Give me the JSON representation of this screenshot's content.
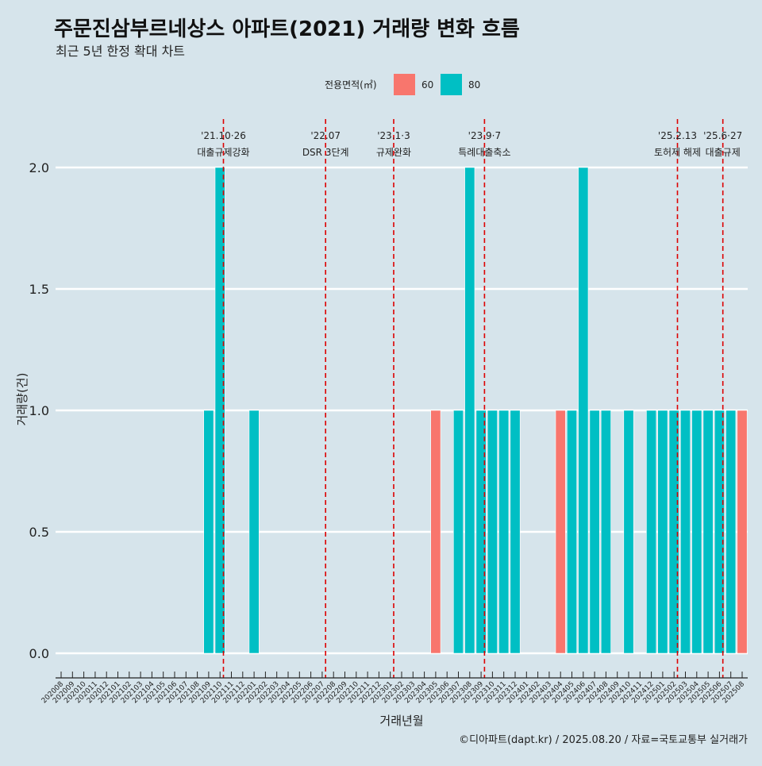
{
  "title": "주문진삼부르네상스 아파트(2021) 거래량 변화 흐름",
  "subtitle": "최근 5년 한정 확대 차트",
  "caption": "©디아파트(dapt.kr) / 2025.08.20 / 자료=국토교통부 실거래가",
  "colors": {
    "background": "#d6e4eb",
    "series_60": "#f8766d",
    "series_80": "#00bfc4",
    "event_line": "#dd0000",
    "grid": "#ffffff"
  },
  "chart_data": {
    "type": "bar",
    "xlabel": "거래년월",
    "ylabel": "거래량(건)",
    "ylim": [
      0,
      2
    ],
    "yticks": [
      0.0,
      0.5,
      1.0,
      1.5,
      2.0
    ],
    "ytick_labels": [
      "0.0",
      "0.5",
      "1.0",
      "1.5",
      "2.0"
    ],
    "grid": true,
    "legend": {
      "title": "전용면적(㎡)",
      "position": "top",
      "entries": [
        "60",
        "80"
      ]
    },
    "categories": [
      "202008",
      "202009",
      "202010",
      "202011",
      "202012",
      "202101",
      "202102",
      "202103",
      "202104",
      "202105",
      "202106",
      "202107",
      "202108",
      "202109",
      "202110",
      "202111",
      "202112",
      "202201",
      "202202",
      "202203",
      "202204",
      "202205",
      "202206",
      "202207",
      "202208",
      "202209",
      "202210",
      "202211",
      "202212",
      "202301",
      "202302",
      "202303",
      "202304",
      "202305",
      "202306",
      "202307",
      "202308",
      "202309",
      "202310",
      "202311",
      "202312",
      "202401",
      "202402",
      "202403",
      "202404",
      "202405",
      "202406",
      "202407",
      "202408",
      "202409",
      "202410",
      "202411",
      "202412",
      "202501",
      "202502",
      "202503",
      "202504",
      "202505",
      "202506",
      "202507",
      "202508"
    ],
    "series": [
      {
        "name": "60",
        "values": [
          0,
          0,
          0,
          0,
          0,
          0,
          0,
          0,
          0,
          0,
          0,
          0,
          0,
          0,
          0,
          0,
          0,
          0,
          0,
          0,
          0,
          0,
          0,
          0,
          0,
          0,
          0,
          0,
          0,
          0,
          0,
          0,
          0,
          1,
          0,
          0,
          0,
          0,
          0,
          0,
          0,
          0,
          0,
          0,
          1,
          0,
          0,
          0,
          0,
          0,
          0,
          0,
          0,
          0,
          0,
          0,
          0,
          0,
          0,
          0,
          1
        ]
      },
      {
        "name": "80",
        "values": [
          0,
          0,
          0,
          0,
          0,
          0,
          0,
          0,
          0,
          0,
          0,
          0,
          0,
          1,
          2,
          0,
          0,
          1,
          0,
          0,
          0,
          0,
          0,
          0,
          0,
          0,
          0,
          0,
          0,
          0,
          0,
          0,
          0,
          0,
          0,
          1,
          2,
          1,
          1,
          1,
          1,
          0,
          0,
          0,
          0,
          1,
          2,
          1,
          1,
          0,
          1,
          0,
          1,
          1,
          1,
          1,
          1,
          1,
          1,
          1,
          0
        ]
      }
    ],
    "annotations": [
      {
        "date": "'21.10·26",
        "label": "대출규제강화",
        "x": 14.3
      },
      {
        "date": "'22.07",
        "label": "DSR 3단계",
        "x": 23.3
      },
      {
        "date": "'23.1·3",
        "label": "규제완화",
        "x": 29.3
      },
      {
        "date": "'23.9·7",
        "label": "특례대출축소",
        "x": 37.3
      },
      {
        "date": "'25.2.13",
        "label": "토허제 해제",
        "x": 54.3
      },
      {
        "date": "'25.6·27",
        "label": "대출규제",
        "x": 58.3
      }
    ]
  }
}
